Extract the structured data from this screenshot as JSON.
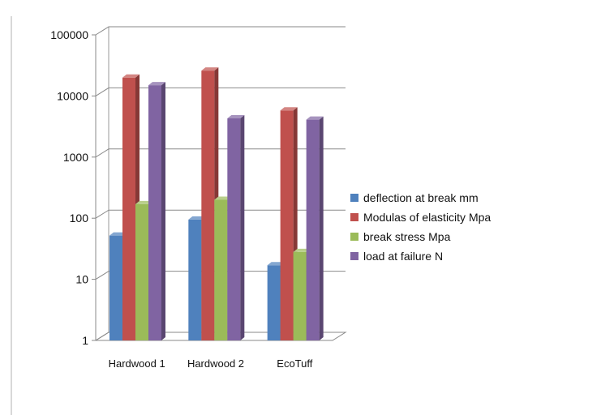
{
  "chart_data": {
    "type": "bar",
    "style": "3d-clustered",
    "title": "",
    "xlabel": "",
    "ylabel": "",
    "yscale": "log",
    "ylim": [
      1,
      100000
    ],
    "yticks": [
      "1",
      "10",
      "100",
      "1000",
      "10000",
      "100000"
    ],
    "grid": true,
    "legend_position": "right",
    "categories": [
      "Hardwood 1",
      "Hardwood 2",
      "EcoTuff"
    ],
    "series": [
      {
        "name": "deflection at break mm",
        "color": "#4f81bd",
        "values": [
          52,
          95,
          17
        ]
      },
      {
        "name": "Modulas of elasticity Mpa",
        "color": "#c0504d",
        "values": [
          20000,
          26000,
          5800
        ]
      },
      {
        "name": "break stress Mpa",
        "color": "#9bbb59",
        "values": [
          170,
          200,
          28
        ]
      },
      {
        "name": "load at failure N",
        "color": "#8064a2",
        "values": [
          15000,
          4300,
          4100
        ]
      }
    ]
  }
}
